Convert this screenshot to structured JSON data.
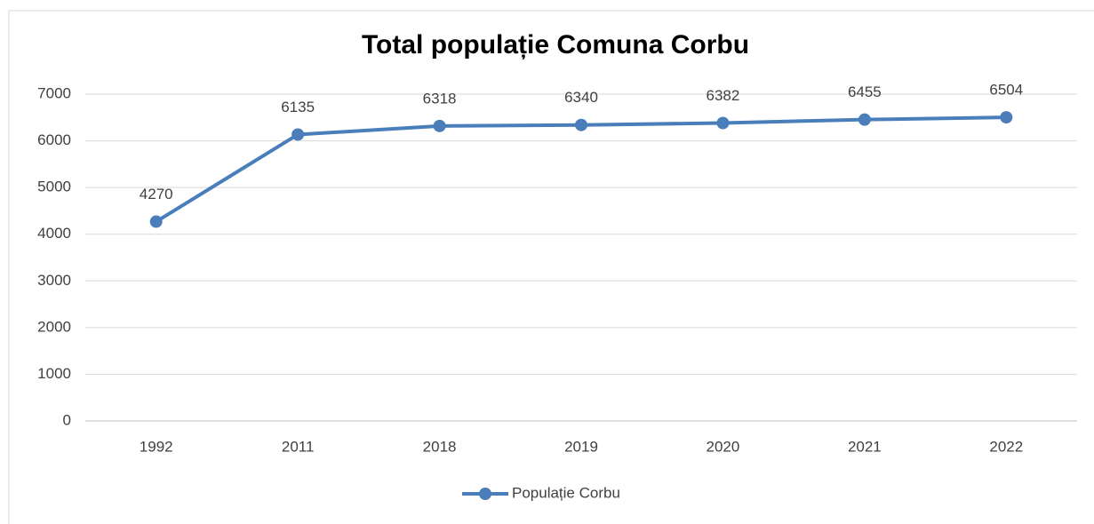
{
  "chart_data": {
    "type": "line",
    "title": "Total populație Comuna Corbu",
    "categories": [
      "1992",
      "2011",
      "2018",
      "2019",
      "2020",
      "2021",
      "2022"
    ],
    "series": [
      {
        "name": "Populație Corbu",
        "color": "#4a7ebb",
        "values": [
          4270,
          6135,
          6318,
          6340,
          6382,
          6455,
          6504
        ]
      }
    ],
    "ylim": [
      0,
      7000
    ],
    "yticks": [
      0,
      1000,
      2000,
      3000,
      4000,
      5000,
      6000,
      7000
    ],
    "grid": true,
    "legend": "bottom"
  }
}
